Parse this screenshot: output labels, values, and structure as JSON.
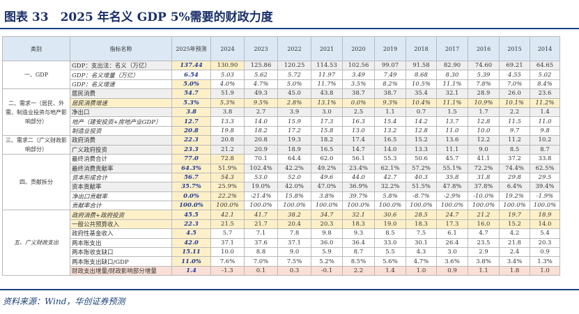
{
  "title": "图表 33　2025 年名义 GDP 5%需要的财政力度",
  "source": "资料来源：Wind，华创证券预测",
  "headers": [
    "类别",
    "指标名称",
    "2025年预测",
    "2024",
    "2023",
    "2022",
    "2021",
    "2020",
    "2019",
    "2018",
    "2017",
    "2016",
    "2015",
    "2014"
  ],
  "groups": [
    {
      "category": "一、GDP",
      "rows": [
        {
          "name": "GDP：支出法：名义（万亿）",
          "values": [
            "137.44",
            "130.90",
            "125.86",
            "120.25",
            "114.53",
            "102.56",
            "99.07",
            "91.58",
            "82.90",
            "74.60",
            "69.21",
            "64.65"
          ]
        },
        {
          "name": "GDP：名义增量（万亿）",
          "values": [
            "6.54",
            "5.03",
            "5.62",
            "5.72",
            "11.97",
            "3.49",
            "7.49",
            "8.68",
            "8.30",
            "5.39",
            "4.55",
            "5.02"
          ]
        },
        {
          "name": "GDP：名义增速",
          "values": [
            "5.0%",
            "4.0%",
            "4.7%",
            "5.0%",
            "11.7%",
            "3.5%",
            "8.2%",
            "10.5%",
            "11.1%",
            "7.8%",
            "7.0%",
            "8.4%"
          ]
        }
      ]
    },
    {
      "category": "二、需求一（居民、外需、制造业投资与地产影响部分）",
      "rows": [
        {
          "name": "居民消费",
          "values": [
            "54.7",
            "51.9",
            "49.3",
            "45.0",
            "43.8",
            "38.7",
            "38.7",
            "35.4",
            "32.1",
            "28.9",
            "26.0",
            "23.6"
          ]
        },
        {
          "name": "居民消费增速",
          "values": [
            "5.3%",
            "5.3%",
            "9.5%",
            "2.8%",
            "13.1%",
            "0.0%",
            "9.3%",
            "10.4%",
            "11.1%",
            "10.9%",
            "10.1%",
            "11.2%"
          ]
        },
        {
          "name": "净出口",
          "values": [
            "3.8",
            "3.8",
            "2.7",
            "3.9",
            "3.0",
            "2.5",
            "1.1",
            "0.7",
            "1.5",
            "1.7",
            "2.2",
            "1.4"
          ]
        },
        {
          "name": "地产（建安投资+房地产业GDP）",
          "values": [
            "12.7",
            "13.3",
            "14.0",
            "15.9",
            "17.3",
            "16.3",
            "15.4",
            "14.2",
            "13.7",
            "12.8",
            "11.5",
            "11.0"
          ]
        },
        {
          "name": "制造业投资",
          "values": [
            "20.8",
            "19.8",
            "18.2",
            "17.2",
            "15.8",
            "13.0",
            "13.2",
            "12.8",
            "11.0",
            "10.0",
            "9.7",
            "9.8"
          ]
        }
      ]
    },
    {
      "category": "三、需求二（广义财政影响部分）",
      "rows": [
        {
          "name": "政府消费",
          "values": [
            "22.3",
            "20.8",
            "20.8",
            "19.3",
            "18.2",
            "17.4",
            "16.5",
            "15.2",
            "13.6",
            "12.2",
            "11.2",
            "10.2"
          ]
        },
        {
          "name": "广义政府投资",
          "values": [
            "23.3",
            "21.2",
            "20.9",
            "18.9",
            "16.5",
            "14.7",
            "14.0",
            "13.3",
            "11.1",
            "9.0",
            "8.5",
            "8.7"
          ]
        }
      ]
    },
    {
      "category": "四、贡献拆分",
      "rows": [
        {
          "name": "最终消费合计",
          "values": [
            "77.0",
            "72.8",
            "70.1",
            "64.4",
            "62.0",
            "56.1",
            "55.3",
            "50.6",
            "45.7",
            "41.1",
            "37.2",
            "33.8"
          ]
        },
        {
          "name": "最终消费贡献率",
          "values": [
            "64.3%",
            "51.9%",
            "102.4%",
            "42.2%",
            "49.2%",
            "23.4%",
            "62.1%",
            "57.2%",
            "55.1%",
            "72.2%",
            "74.4%",
            "62.5%"
          ]
        },
        {
          "name": "资本形成合计",
          "values": [
            "56.7",
            "54.3",
            "53.0",
            "52.0",
            "49.6",
            "44.0",
            "42.7",
            "40.3",
            "35.8",
            "31.8",
            "29.8",
            "29.5"
          ]
        },
        {
          "name": "资本贡献率",
          "values": [
            "35.7%",
            "25.9%",
            "19.0%",
            "42.0%",
            "47.0%",
            "36.9%",
            "32.2%",
            "51.5%",
            "47.8%",
            "37.8%",
            "6.4%",
            "39.4%"
          ]
        },
        {
          "name": "净出口贡献率",
          "values": [
            "0.0%",
            "22.2%",
            "-21.4%",
            "15.8%",
            "3.8%",
            "39.7%",
            "5.8%",
            "-8.7%",
            "-2.9%",
            "-10.0%",
            "19.2%",
            "-1.9%"
          ]
        },
        {
          "name": "贡献率合计",
          "values": [
            "100.0%",
            "100.0%",
            "100.0%",
            "100.0%",
            "100.0%",
            "100.0%",
            "100.0%",
            "100.0%",
            "100.0%",
            "100.0%",
            "100.0%",
            "100.0%"
          ]
        }
      ]
    },
    {
      "category": "五、广义财政支出",
      "rows": [
        {
          "name": "政府消费+政府投资",
          "values": [
            "45.5",
            "42.1",
            "41.7",
            "38.2",
            "34.7",
            "32.1",
            "30.6",
            "28.5",
            "24.7",
            "21.2",
            "19.7",
            "18.9"
          ]
        },
        {
          "name": "一般公共预算收入",
          "values": [
            "22.3",
            "21.5",
            "21.7",
            "20.4",
            "20.3",
            "18.3",
            "19.0",
            "18.3",
            "17.3",
            "16.0",
            "15.2",
            "14.0"
          ]
        },
        {
          "name": "政府性基金收入",
          "values": [
            "4.5",
            "5.7",
            "7.1",
            "7.8",
            "9.8",
            "9.3",
            "8.5",
            "7.5",
            "6.1",
            "4.7",
            "4.2",
            "5.4"
          ]
        },
        {
          "name": "两本账支出",
          "values": [
            "42.0",
            "37.1",
            "37.6",
            "37.1",
            "36.0",
            "36.4",
            "33.0",
            "30.1",
            "26.4",
            "23.5",
            "21.8",
            "20.3"
          ]
        },
        {
          "name": "两本账收支缺口",
          "values": [
            "15.11",
            "10.0",
            "8.8",
            "9.0",
            "5.9",
            "8.7",
            "5.5",
            "4.3",
            "3.0",
            "2.9",
            "2.4",
            "0.9"
          ]
        },
        {
          "name": "两本账支出缺口/GDP",
          "values": [
            "11.0%",
            "7.6%",
            "7.0%",
            "7.5%",
            "5.2%",
            "8.5%",
            "5.6%",
            "4.7%",
            "3.6%",
            "3.8%",
            "3.4%",
            "1.3%"
          ]
        },
        {
          "name": "财政支出增量/财政影响部分增量",
          "values": [
            "1.4",
            "-1.3",
            "0.1",
            "0.3",
            "-0.1",
            "2.2",
            "1.4",
            "1.0",
            "0.9",
            "1.1",
            "1.8",
            "1.0"
          ]
        }
      ]
    }
  ]
}
